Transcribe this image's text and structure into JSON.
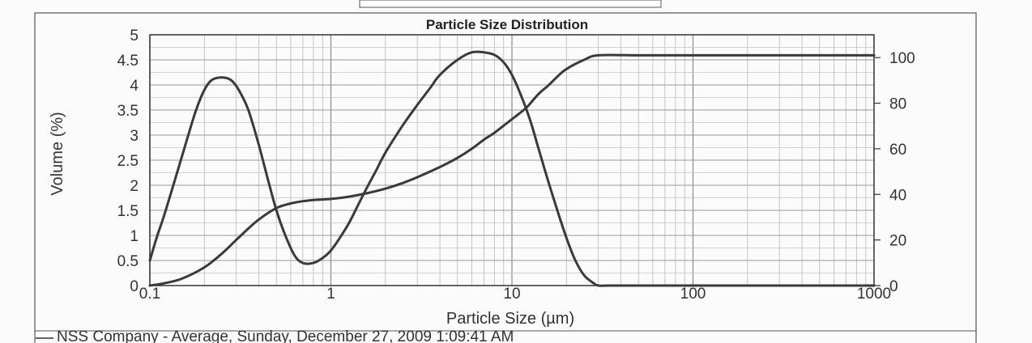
{
  "chart_data": {
    "type": "line",
    "title": "Particle Size Distribution",
    "xlabel": "Particle Size (µm)",
    "ylabel": "Volume (%)",
    "x_scale": "log",
    "xlim": [
      0.1,
      1000
    ],
    "ylim": [
      0,
      5
    ],
    "y2lim": [
      0,
      110
    ],
    "grid": true,
    "x_ticks": [
      "0.1",
      "1",
      "10",
      "100",
      "1000"
    ],
    "y_ticks": [
      "0",
      "0.5",
      "1",
      "1.5",
      "2",
      "2.5",
      "3",
      "3.5",
      "4",
      "4.5",
      "5"
    ],
    "y2_ticks": [
      "0",
      "20",
      "40",
      "60",
      "80",
      "100"
    ],
    "legend": [
      {
        "label": "NSS Company - Average, Sunday, December 27, 2009 1:09:41 AM"
      }
    ],
    "series": [
      {
        "axis": "left",
        "x": [
          0.1,
          0.11,
          0.12,
          0.14,
          0.16,
          0.18,
          0.2,
          0.22,
          0.25,
          0.28,
          0.31,
          0.35,
          0.4,
          0.45,
          0.5,
          0.56,
          0.63,
          0.7,
          0.8,
          0.9,
          1.0,
          1.12,
          1.26,
          1.41,
          1.58,
          1.78,
          2.0,
          2.5,
          3.0,
          3.55,
          4.0,
          5.0,
          6.0,
          7.0,
          8.0,
          9.0,
          10.0,
          11.2,
          12.6,
          14.1,
          15.8,
          17.8,
          20.0,
          22.4,
          25.1,
          28.2,
          30.0,
          35.0,
          50.0,
          100.0,
          1000.0
        ],
        "values": [
          0.5,
          1.0,
          1.4,
          2.2,
          2.9,
          3.5,
          3.9,
          4.1,
          4.15,
          4.1,
          3.9,
          3.5,
          2.8,
          2.1,
          1.5,
          1.0,
          0.6,
          0.45,
          0.45,
          0.55,
          0.7,
          0.95,
          1.25,
          1.6,
          1.95,
          2.3,
          2.65,
          3.2,
          3.6,
          3.95,
          4.2,
          4.5,
          4.65,
          4.65,
          4.6,
          4.45,
          4.2,
          3.8,
          3.3,
          2.7,
          2.1,
          1.5,
          0.95,
          0.5,
          0.2,
          0.05,
          0.0,
          0.0,
          0.0,
          0.0,
          0.0
        ]
      },
      {
        "axis": "right",
        "x": [
          0.1,
          0.12,
          0.15,
          0.2,
          0.25,
          0.3,
          0.35,
          0.4,
          0.5,
          0.6,
          0.7,
          0.8,
          1.0,
          1.26,
          1.58,
          2.0,
          2.5,
          3.0,
          4.0,
          5.0,
          6.0,
          7.0,
          8.0,
          10.0,
          12.0,
          14.0,
          16.0,
          18.0,
          20.0,
          25.0,
          30.0,
          50.0,
          100.0,
          1000.0
        ],
        "values": [
          0,
          1,
          3,
          8,
          14,
          20,
          25,
          29,
          34,
          36,
          37,
          37.5,
          38,
          39,
          40.5,
          42.5,
          45,
          47.5,
          52,
          56,
          60,
          64,
          67,
          73,
          78,
          84,
          88,
          92,
          95,
          99,
          101,
          101,
          101,
          101
        ]
      }
    ]
  }
}
